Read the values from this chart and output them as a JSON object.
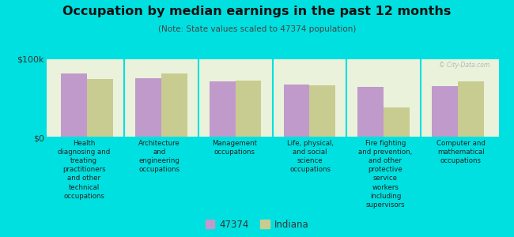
{
  "title": "Occupation by median earnings in the past 12 months",
  "subtitle": "(Note: State values scaled to 47374 population)",
  "background_color": "#00e0e0",
  "plot_bg_color": "#eaf2dc",
  "categories": [
    "Health\ndiagnosing and\ntreating\npractitioners\nand other\ntechnical\noccupations",
    "Architecture\nand\nengineering\noccupations",
    "Management\noccupations",
    "Life, physical,\nand social\nscience\noccupations",
    "Fire fighting\nand prevention,\nand other\nprotective\nservice\nworkers\nincluding\nsupervisors",
    "Computer and\nmathematical\noccupations"
  ],
  "values_47374": [
    82000,
    76000,
    72000,
    68000,
    65000,
    66000
  ],
  "values_indiana": [
    75000,
    82000,
    73000,
    67000,
    38000,
    72000
  ],
  "color_47374": "#c09aca",
  "color_indiana": "#c8cc90",
  "ylim": [
    0,
    100000
  ],
  "ytick_labels": [
    "$0",
    "$100k"
  ],
  "legend_47374": "47374",
  "legend_indiana": "Indiana",
  "bar_width": 0.35,
  "watermark": "© City-Data.com"
}
